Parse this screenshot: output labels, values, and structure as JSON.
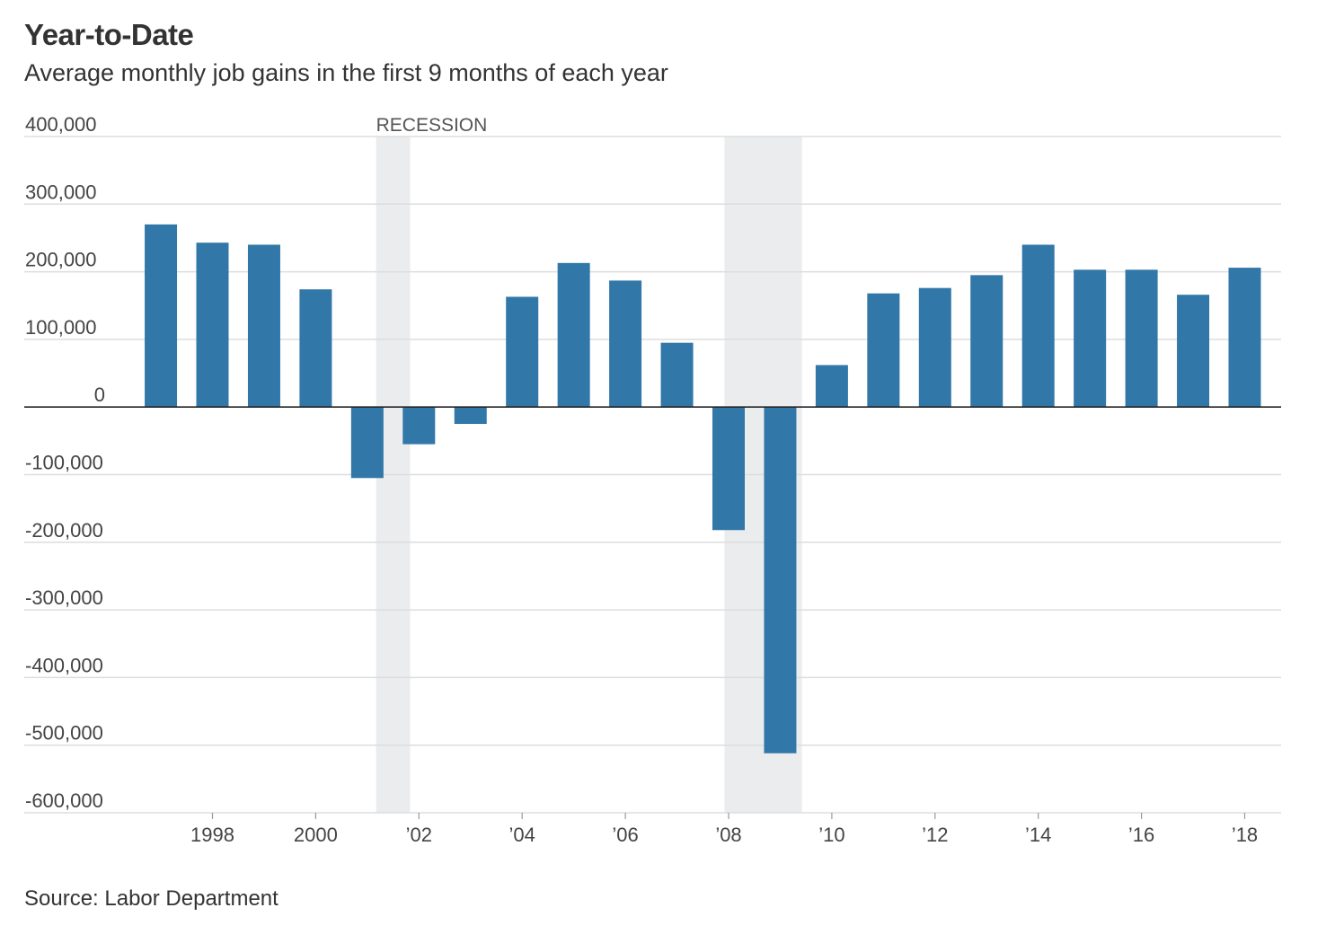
{
  "title": "Year-to-Date",
  "subtitle": "Average monthly job gains in the first 9 months of each year",
  "source": "Source: Labor Department",
  "colors": {
    "bar": "#3177a8",
    "recession": "#ebecee",
    "grid": "#dddddd",
    "zero_line": "#222222",
    "text": "#333333"
  },
  "chart_data": {
    "type": "bar",
    "title": "Year-to-Date",
    "subtitle": "Average monthly job gains in the first 9 months of each year",
    "xlabel": "",
    "ylabel": "",
    "categories": [
      1997,
      1998,
      1999,
      2000,
      2001,
      2002,
      2003,
      2004,
      2005,
      2006,
      2007,
      2008,
      2009,
      2010,
      2011,
      2012,
      2013,
      2014,
      2015,
      2016,
      2017,
      2018
    ],
    "values": [
      270000,
      243000,
      240000,
      174000,
      -105000,
      -55000,
      -25000,
      163000,
      213000,
      187000,
      95000,
      -182000,
      -512000,
      62000,
      168000,
      176000,
      195000,
      240000,
      203000,
      203000,
      166000,
      206000
    ],
    "ylim": [
      -600000,
      400000
    ],
    "yticks": [
      400000,
      300000,
      200000,
      100000,
      0,
      -100000,
      -200000,
      -300000,
      -400000,
      -500000,
      -600000
    ],
    "ytick_labels": [
      "400,000",
      "300,000",
      "200,000",
      "100,000",
      "0",
      "-100,000",
      "-200,000",
      "-300,000",
      "-400,000",
      "-500,000",
      "-600,000"
    ],
    "xticks": [
      1998,
      2000,
      2002,
      2004,
      2006,
      2008,
      2010,
      2012,
      2014,
      2016,
      2018
    ],
    "xtick_labels": [
      "1998",
      "2000",
      "’02",
      "’04",
      "’06",
      "’08",
      "’10",
      "’12",
      "’14",
      "’16",
      "’18"
    ],
    "recessions": [
      {
        "start": 2001.17,
        "end": 2001.83
      },
      {
        "start": 2007.92,
        "end": 2009.42
      }
    ],
    "recession_label": "RECESSION",
    "grid": true,
    "legend": "none"
  }
}
